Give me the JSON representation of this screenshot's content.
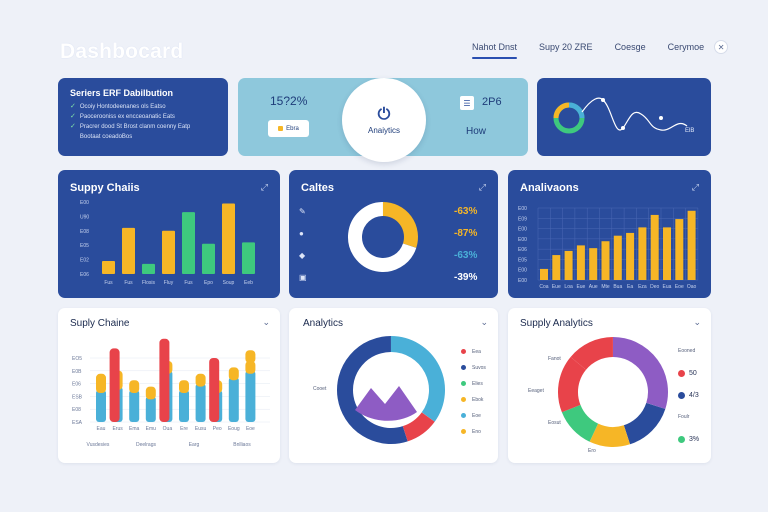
{
  "header": {
    "title": "Dashbocard",
    "nav": [
      "Nahot Dnst",
      "Supy 20 ZRE",
      "Coesge",
      "Cerymoe"
    ],
    "active_nav": 0,
    "close_icon": "close-icon"
  },
  "cards": {
    "summary": {
      "title": "Seriers ERF Dabilbution",
      "items": [
        "Ocoiy Hontodeenanes ols Eatso",
        "Paocerooniss ex encceoanatic Eats",
        "Pracrer dood St Brost clanm coenny Eatp",
        "Bootaat coeadoBos"
      ]
    },
    "analytics_banner": {
      "left_value": "15?2%",
      "pill_text": "Ebra",
      "center_label": "Anaiytics",
      "right_value": "2P6",
      "right_label": "How"
    },
    "trend": {
      "value_label": "ElB"
    },
    "supply_chains": {
      "title": "Suppy Chaiis",
      "y_ticks": [
        "E06",
        "E02",
        "E05",
        "E08",
        "U90",
        "E00"
      ],
      "x_labels": [
        "Fus",
        "Fus",
        "Flosis",
        "Fluy",
        "Fus",
        "Epo",
        "Soup",
        "Eeb"
      ]
    },
    "caltes": {
      "title": "Caltes",
      "rows": [
        {
          "icon": "pen-icon",
          "value": "-63%"
        },
        {
          "icon": "cart-icon",
          "value": "-87%"
        },
        {
          "icon": "bag-icon",
          "value": "-63%"
        },
        {
          "icon": "box-icon",
          "value": "-39%"
        }
      ]
    },
    "analivaons": {
      "title": "Analivaons",
      "y_ticks": [
        "E00",
        "E00",
        "E05",
        "E06",
        "E00",
        "E00",
        "E09",
        "E00"
      ],
      "x_labels": [
        "Coa",
        "Eue",
        "Loa",
        "Eue",
        "Aue",
        "Mte",
        "Bua",
        "Ea",
        "Eza",
        "Deo",
        "Eua",
        "Eoe",
        "Oao"
      ]
    },
    "supply_chaine": {
      "title": "Suply Chaine",
      "y_ticks": [
        "ESA",
        "E08",
        "ESB",
        "E06",
        "E0B",
        "EO5"
      ],
      "x_labels": [
        "Eau",
        "Erus",
        "Ema",
        "Emu",
        "Oua",
        "Ere",
        "Eusu",
        "Peo",
        "Eoug",
        "Eoe"
      ],
      "x_bottom": [
        "Vusdesies",
        "Deelrags",
        "Earg",
        "Bnlliaos"
      ]
    },
    "analytics": {
      "title": "Analytics",
      "left_label": "Cooet",
      "legend": [
        "Eea",
        "Suvos",
        "Elies",
        "Ebok",
        "Eoe",
        "Eno"
      ]
    },
    "supply_analytics": {
      "title": "Supply Analytics",
      "side_labels": [
        "Fanot",
        "Eeaget",
        "Eosut",
        "Ero"
      ],
      "legend": [
        {
          "label": "Eooned",
          "value": "50"
        },
        {
          "label": "",
          "value": "4/3"
        },
        {
          "label": "Foulr",
          "value": "3%"
        }
      ]
    }
  },
  "chart_data": [
    {
      "type": "bar",
      "chart": "supply_chains",
      "series": [
        {
          "values": [
            9,
            32,
            7,
            30,
            43,
            21,
            49,
            22
          ]
        }
      ],
      "colors": [
        "#f6b626",
        "#f6b626",
        "#3ec97e",
        "#f6b626",
        "#3ec97e",
        "#3ec97e",
        "#f6b626",
        "#3ec97e"
      ]
    },
    {
      "type": "pie",
      "chart": "caltes",
      "values": [
        30,
        70
      ],
      "colors": [
        "#f6b626",
        "#ffffff"
      ]
    },
    {
      "type": "bar",
      "chart": "analivaons",
      "series": [
        {
          "values": [
            8,
            18,
            21,
            25,
            23,
            28,
            32,
            34,
            38,
            47,
            38,
            44,
            50
          ]
        }
      ],
      "colors": [
        "#f6b626"
      ]
    },
    {
      "type": "bar",
      "chart": "supply_chaine",
      "series": [
        {
          "name": "",
          "values": [
            10,
            11,
            10,
            8,
            16,
            10,
            12,
            10,
            14,
            16
          ]
        },
        {
          "name": "",
          "values": [
            6,
            6,
            4,
            4,
            4,
            4,
            4,
            4,
            4,
            4
          ]
        },
        {
          "name": "",
          "values": [
            0,
            0,
            0,
            0,
            0,
            0,
            0,
            0,
            0,
            4
          ]
        }
      ],
      "colors": [
        "#4ab0d8",
        "#f6b626",
        "#f6b626"
      ],
      "red_overlays": [
        1,
        4,
        7
      ]
    },
    {
      "type": "pie",
      "chart": "analytics",
      "values": [
        35,
        10,
        55
      ],
      "colors": [
        "#4ab0d8",
        "#e8434a",
        "#2a4c9c"
      ],
      "inner_color": "#8e5cc4"
    },
    {
      "type": "pie",
      "chart": "supply_analytics",
      "values": [
        30,
        15,
        12,
        12,
        17,
        14
      ],
      "colors": [
        "#8e5cc4",
        "#2a4c9c",
        "#f6b626",
        "#3ec97e",
        "#e8434a",
        "#e8434a"
      ]
    }
  ],
  "colors": {
    "blue_card": "#2a4c9c",
    "light_card": "#8ec8dc",
    "yellow": "#f6b626",
    "green": "#3ec97e",
    "red": "#e8434a",
    "cyan": "#4ab0d8",
    "purple": "#8e5cc4"
  }
}
